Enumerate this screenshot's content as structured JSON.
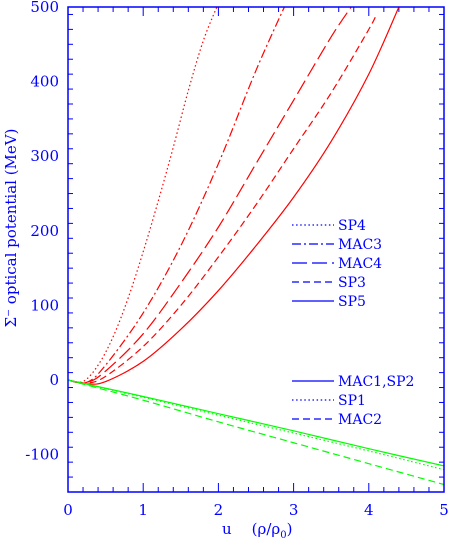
{
  "chart_data": {
    "type": "line",
    "xlabel_u": "u",
    "xlabel_paren": "(ρ/ρ",
    "xlabel_sub": "0",
    "xlabel_close": ")",
    "ylabel": "Σ⁻ optical potential  (MeV)",
    "xlim": [
      0,
      5
    ],
    "ylim": [
      -150,
      500
    ],
    "x_ticks": [
      0,
      1,
      2,
      3,
      4,
      5
    ],
    "y_ticks": [
      -100,
      0,
      100,
      200,
      300,
      400,
      500
    ],
    "axis_color": "#0000ff",
    "red": "#ff0000",
    "green": "#00ff00",
    "legends": [
      {
        "group": "red",
        "entries": [
          {
            "label": "SP4",
            "dash": "dotted"
          },
          {
            "label": "MAC3",
            "dash": "dashdot"
          },
          {
            "label": "MAC4",
            "dash": "longdash"
          },
          {
            "label": "SP3",
            "dash": "dashed"
          },
          {
            "label": "SP5",
            "dash": "solid"
          }
        ]
      },
      {
        "group": "green",
        "entries": [
          {
            "label": "MAC1,SP2",
            "dash": "solid"
          },
          {
            "label": "SP1",
            "dash": "dotted"
          },
          {
            "label": "MAC2",
            "dash": "dashed"
          }
        ]
      }
    ],
    "series": [
      {
        "group": "red",
        "dash": "dotted",
        "x": [
          0,
          0.2,
          0.4,
          0.6,
          0.8,
          1.0,
          1.2,
          1.4,
          1.6,
          1.8,
          2.0
        ],
        "y": [
          0,
          -2,
          20,
          58,
          110,
          172,
          240,
          312,
          388,
          455,
          505
        ]
      },
      {
        "group": "red",
        "dash": "dashdot",
        "x": [
          0,
          0.25,
          0.5,
          1.0,
          1.5,
          2.0,
          2.5,
          2.9
        ],
        "y": [
          0,
          -3,
          20,
          90,
          180,
          290,
          415,
          505
        ]
      },
      {
        "group": "red",
        "dash": "longdash",
        "x": [
          0,
          0.25,
          0.5,
          1.0,
          1.5,
          2.0,
          2.5,
          3.0,
          3.5,
          3.8
        ],
        "y": [
          0,
          -3,
          12,
          62,
          130,
          205,
          290,
          375,
          460,
          505
        ]
      },
      {
        "group": "red",
        "dash": "dashed",
        "x": [
          0,
          0.25,
          0.5,
          1.0,
          1.5,
          2.0,
          2.5,
          3.0,
          3.5,
          4.0,
          4.1
        ],
        "y": [
          0,
          -4,
          5,
          45,
          100,
          165,
          235,
          310,
          385,
          470,
          490
        ]
      },
      {
        "group": "red",
        "dash": "solid",
        "x": [
          0,
          0.25,
          0.5,
          1.0,
          1.5,
          2.0,
          2.5,
          3.0,
          3.5,
          4.0,
          4.4
        ],
        "y": [
          0,
          -5,
          -2,
          25,
          68,
          120,
          180,
          245,
          320,
          410,
          500
        ]
      },
      {
        "group": "green",
        "dash": "solid",
        "x": [
          0,
          1,
          2,
          3,
          4,
          5
        ],
        "y": [
          0,
          -22,
          -45,
          -68,
          -92,
          -115
        ]
      },
      {
        "group": "green",
        "dash": "dotted",
        "x": [
          0,
          1,
          2,
          3,
          4,
          5
        ],
        "y": [
          0,
          -23,
          -47,
          -71,
          -95,
          -120
        ]
      },
      {
        "group": "green",
        "dash": "dashed",
        "x": [
          0,
          1,
          2,
          3,
          4,
          5
        ],
        "y": [
          0,
          -27,
          -56,
          -84,
          -112,
          -140
        ]
      }
    ]
  }
}
